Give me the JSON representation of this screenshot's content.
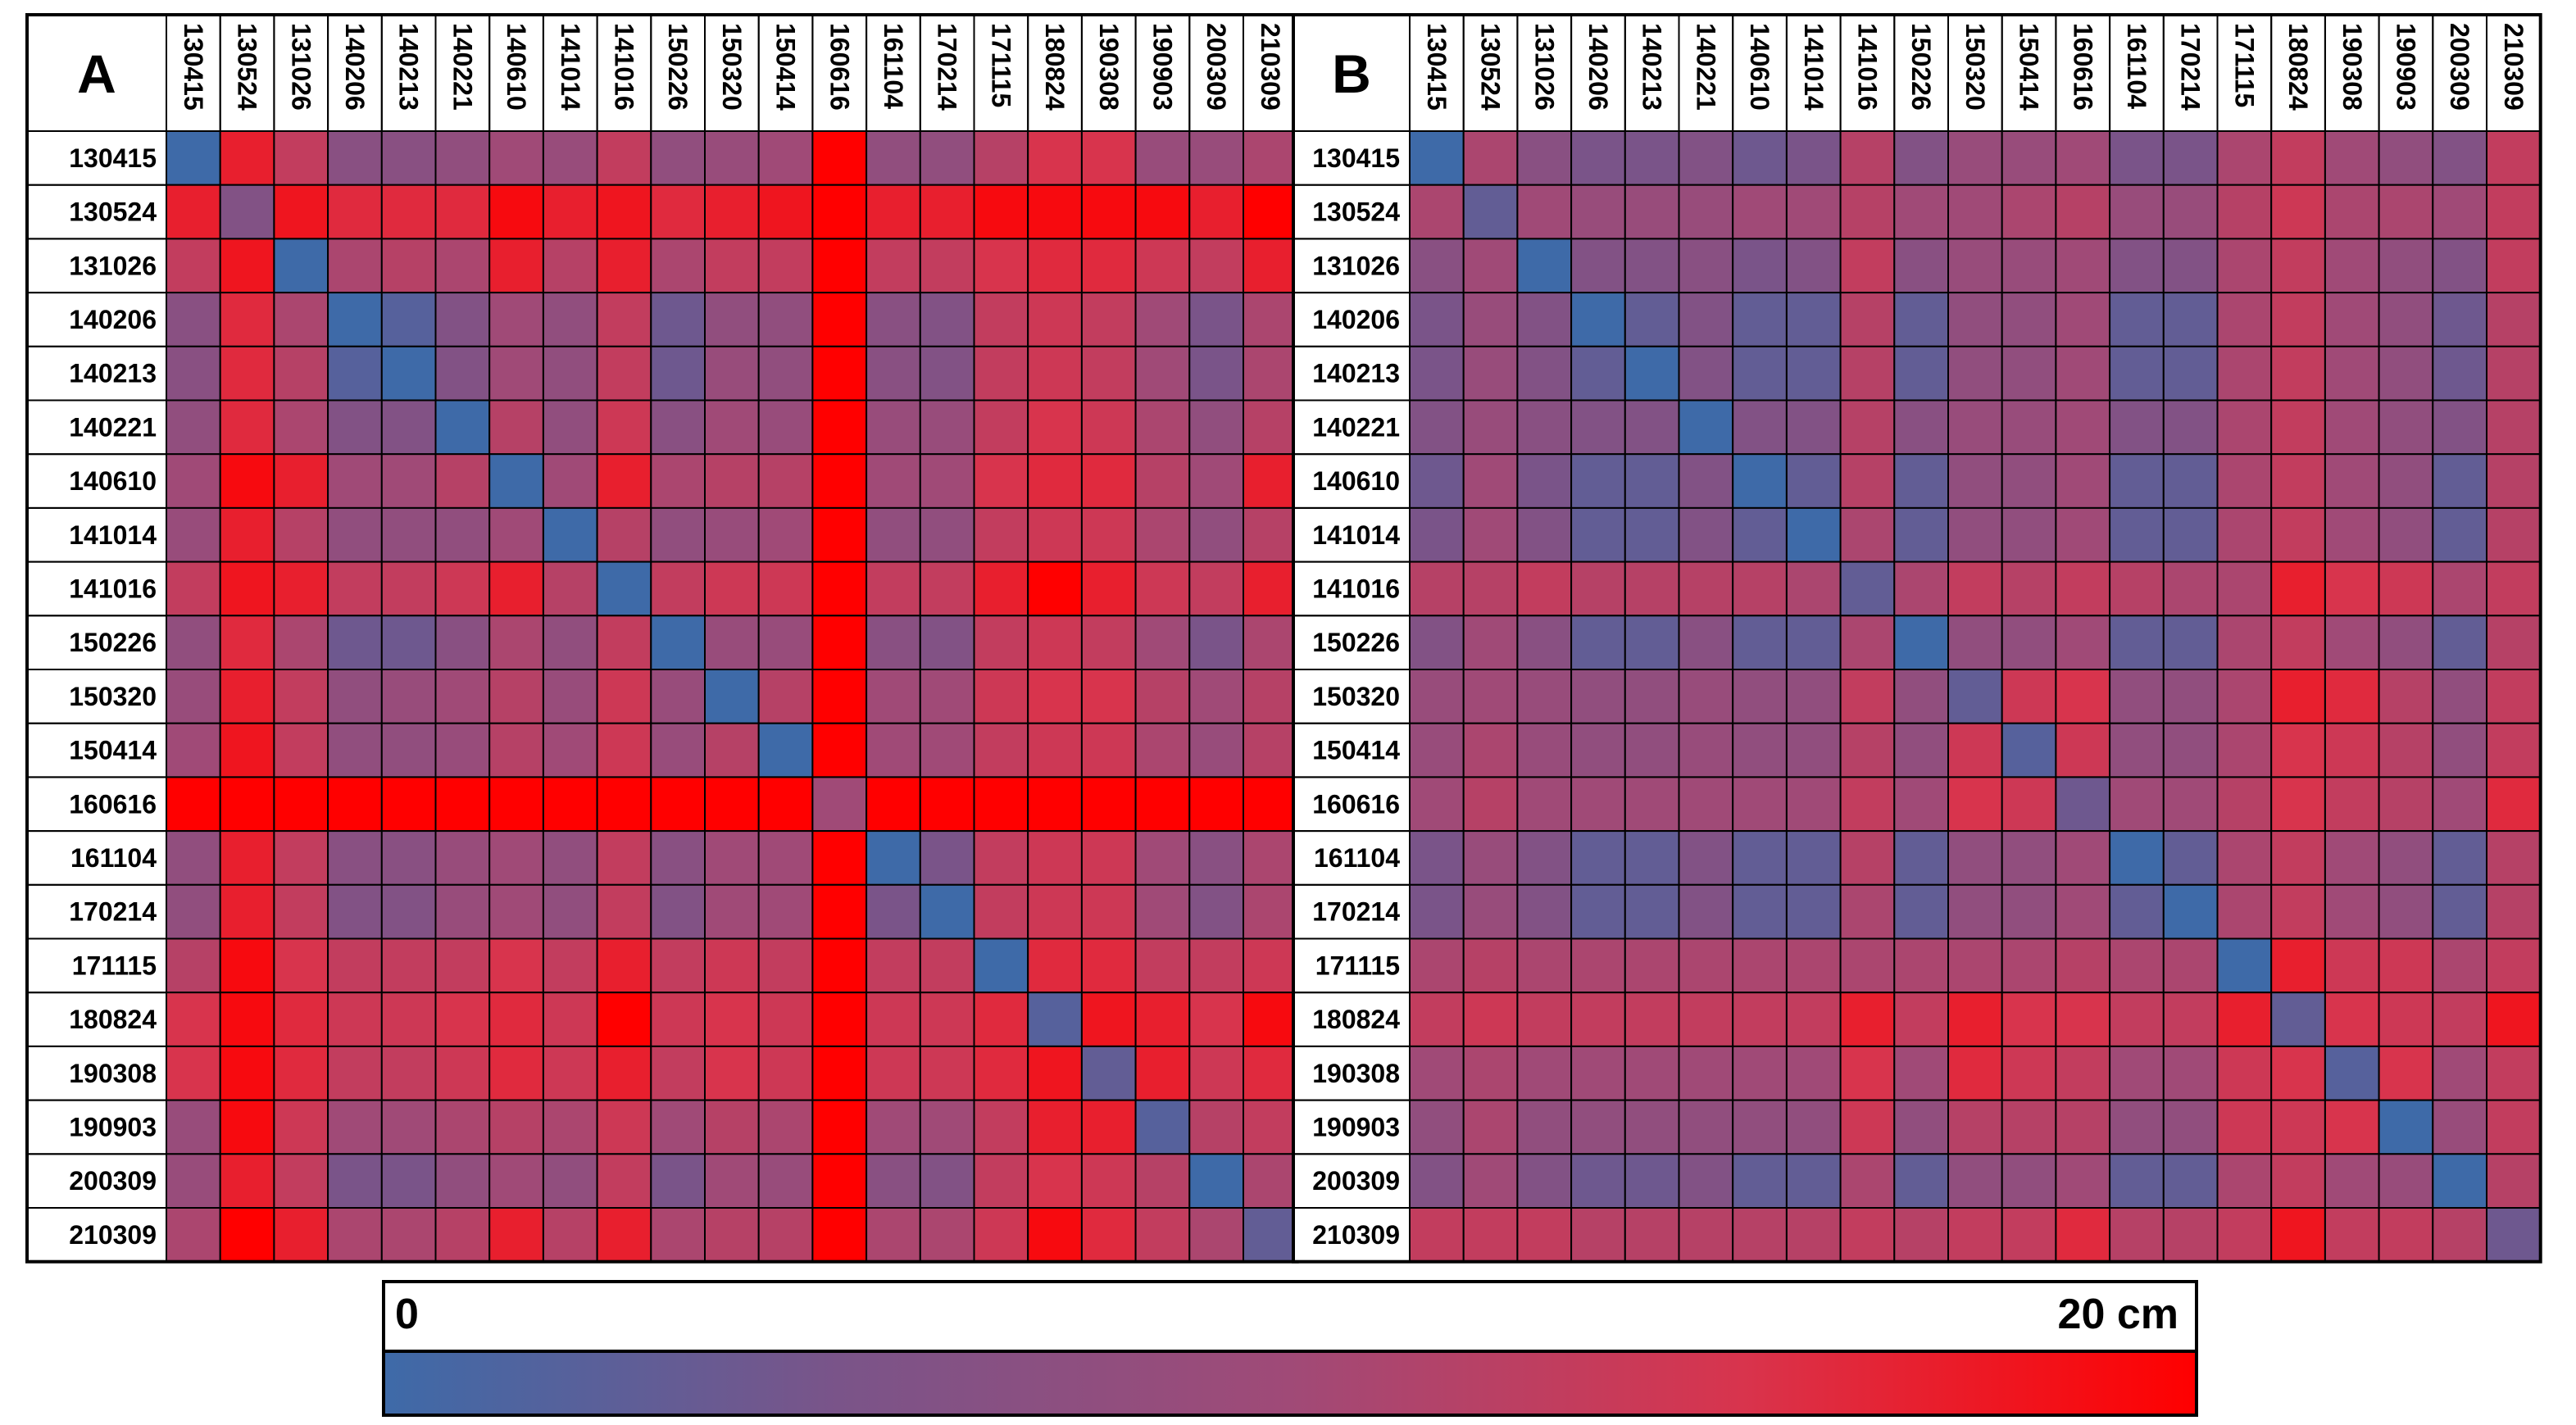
{
  "labels": [
    "130415",
    "130524",
    "131026",
    "140206",
    "140213",
    "140221",
    "140610",
    "141014",
    "141016",
    "150226",
    "150320",
    "150414",
    "160616",
    "161104",
    "170214",
    "171115",
    "180824",
    "190308",
    "190903",
    "200309",
    "210309"
  ],
  "colorscale": {
    "min_label": "0",
    "max_label": "20 cm",
    "min_value": 0,
    "max_value": 20,
    "stops": [
      "#3e6aa8",
      "#7a5489",
      "#a04a77",
      "#d8344d",
      "#ff0000"
    ]
  },
  "chart_data": [
    {
      "type": "heatmap",
      "panel": "A",
      "unit": "cm",
      "vrange": [
        0,
        20
      ],
      "values": [
        [
          0,
          17,
          13,
          7,
          7,
          8,
          10,
          9,
          13,
          8,
          9,
          10,
          20,
          8,
          8,
          12,
          15,
          15,
          9,
          9,
          11
        ],
        [
          17,
          6,
          18,
          16,
          16,
          16,
          19,
          17,
          18,
          16,
          17,
          18,
          20,
          17,
          17,
          19,
          19,
          19,
          19,
          17,
          20
        ],
        [
          13,
          18,
          0,
          11,
          12,
          11,
          17,
          12,
          17,
          11,
          13,
          13,
          20,
          13,
          13,
          15,
          16,
          16,
          14,
          13,
          17
        ],
        [
          7,
          16,
          11,
          0,
          2,
          6,
          10,
          8,
          13,
          4,
          8,
          8,
          20,
          7,
          6,
          13,
          14,
          13,
          10,
          5,
          11
        ],
        [
          7,
          16,
          12,
          2,
          0,
          6,
          10,
          8,
          13,
          4,
          9,
          8,
          20,
          7,
          6,
          13,
          14,
          13,
          10,
          5,
          11
        ],
        [
          8,
          16,
          11,
          6,
          6,
          0,
          12,
          8,
          14,
          7,
          10,
          9,
          20,
          9,
          9,
          13,
          15,
          14,
          11,
          8,
          12
        ],
        [
          10,
          19,
          17,
          10,
          10,
          12,
          0,
          10,
          17,
          11,
          12,
          12,
          20,
          10,
          10,
          15,
          16,
          16,
          12,
          10,
          17
        ],
        [
          9,
          17,
          12,
          8,
          8,
          8,
          10,
          0,
          12,
          8,
          9,
          10,
          20,
          8,
          8,
          13,
          14,
          14,
          11,
          8,
          12
        ],
        [
          13,
          18,
          17,
          13,
          13,
          14,
          17,
          12,
          0,
          13,
          14,
          14,
          20,
          13,
          13,
          17,
          20,
          17,
          14,
          13,
          17
        ],
        [
          8,
          16,
          11,
          4,
          4,
          7,
          11,
          8,
          13,
          0,
          9,
          9,
          20,
          7,
          6,
          13,
          14,
          13,
          10,
          5,
          11
        ],
        [
          9,
          17,
          13,
          8,
          9,
          10,
          12,
          9,
          14,
          9,
          0,
          12,
          20,
          10,
          10,
          14,
          15,
          15,
          12,
          10,
          12
        ],
        [
          10,
          18,
          13,
          8,
          8,
          9,
          12,
          10,
          14,
          9,
          12,
          0,
          20,
          10,
          10,
          13,
          14,
          14,
          11,
          9,
          12
        ],
        [
          20,
          20,
          20,
          20,
          20,
          20,
          20,
          20,
          20,
          20,
          20,
          20,
          10,
          20,
          20,
          20,
          20,
          20,
          20,
          20,
          20
        ],
        [
          8,
          17,
          13,
          7,
          7,
          9,
          10,
          8,
          13,
          7,
          10,
          10,
          20,
          0,
          5,
          13,
          14,
          14,
          10,
          7,
          11
        ],
        [
          8,
          17,
          13,
          6,
          6,
          9,
          10,
          8,
          13,
          6,
          10,
          10,
          20,
          5,
          0,
          13,
          14,
          14,
          10,
          6,
          11
        ],
        [
          12,
          19,
          15,
          13,
          13,
          13,
          15,
          13,
          17,
          13,
          14,
          13,
          20,
          13,
          13,
          0,
          16,
          16,
          13,
          13,
          14
        ],
        [
          15,
          19,
          16,
          14,
          14,
          15,
          16,
          14,
          20,
          14,
          15,
          14,
          20,
          14,
          14,
          16,
          2,
          18,
          17,
          15,
          19
        ],
        [
          15,
          19,
          16,
          13,
          13,
          14,
          16,
          14,
          17,
          13,
          15,
          14,
          20,
          14,
          14,
          16,
          18,
          3,
          17,
          14,
          16
        ],
        [
          9,
          19,
          14,
          10,
          10,
          11,
          12,
          11,
          14,
          10,
          12,
          11,
          20,
          10,
          10,
          13,
          17,
          17,
          2,
          12,
          13
        ],
        [
          9,
          17,
          13,
          5,
          5,
          8,
          10,
          8,
          13,
          5,
          10,
          9,
          20,
          7,
          6,
          13,
          15,
          14,
          12,
          0,
          11
        ],
        [
          11,
          20,
          17,
          11,
          11,
          12,
          17,
          12,
          17,
          11,
          12,
          12,
          20,
          11,
          11,
          14,
          19,
          16,
          13,
          11,
          3
        ]
      ]
    },
    {
      "type": "heatmap",
      "panel": "B",
      "unit": "cm",
      "vrange": [
        0,
        20
      ],
      "values": [
        [
          0,
          11,
          7,
          5,
          5,
          6,
          4,
          5,
          12,
          6,
          9,
          9,
          10,
          5,
          5,
          11,
          13,
          10,
          8,
          6,
          13
        ],
        [
          11,
          3,
          10,
          9,
          9,
          9,
          10,
          10,
          12,
          10,
          10,
          11,
          12,
          9,
          9,
          12,
          14,
          11,
          11,
          10,
          13
        ],
        [
          7,
          10,
          0,
          6,
          6,
          7,
          5,
          6,
          13,
          7,
          9,
          9,
          10,
          6,
          6,
          11,
          13,
          10,
          8,
          6,
          13
        ],
        [
          5,
          9,
          6,
          0,
          3,
          6,
          3,
          3,
          12,
          3,
          8,
          8,
          10,
          3,
          3,
          11,
          13,
          10,
          8,
          4,
          12
        ],
        [
          5,
          9,
          6,
          3,
          0,
          6,
          3,
          3,
          12,
          3,
          8,
          8,
          10,
          3,
          3,
          11,
          13,
          10,
          8,
          4,
          12
        ],
        [
          6,
          9,
          7,
          6,
          6,
          0,
          6,
          6,
          12,
          7,
          9,
          9,
          10,
          6,
          6,
          11,
          13,
          10,
          8,
          6,
          12
        ],
        [
          4,
          10,
          5,
          3,
          3,
          6,
          0,
          3,
          12,
          3,
          8,
          8,
          10,
          3,
          3,
          11,
          13,
          10,
          8,
          3,
          12
        ],
        [
          5,
          10,
          6,
          3,
          3,
          6,
          3,
          0,
          11,
          3,
          8,
          8,
          10,
          3,
          3,
          11,
          13,
          10,
          8,
          3,
          12
        ],
        [
          12,
          12,
          13,
          12,
          12,
          12,
          12,
          11,
          3,
          11,
          13,
          12,
          13,
          12,
          11,
          11,
          17,
          15,
          14,
          11,
          13
        ],
        [
          6,
          10,
          7,
          3,
          3,
          7,
          3,
          3,
          11,
          0,
          8,
          8,
          10,
          3,
          3,
          11,
          13,
          10,
          8,
          3,
          12
        ],
        [
          9,
          10,
          9,
          8,
          8,
          9,
          8,
          8,
          13,
          8,
          3,
          14,
          15,
          8,
          8,
          11,
          17,
          16,
          12,
          8,
          13
        ],
        [
          9,
          11,
          9,
          8,
          8,
          9,
          8,
          8,
          12,
          8,
          14,
          2,
          14,
          8,
          8,
          11,
          15,
          14,
          12,
          8,
          13
        ],
        [
          10,
          12,
          10,
          10,
          10,
          10,
          10,
          10,
          13,
          10,
          15,
          14,
          4,
          10,
          10,
          12,
          15,
          13,
          12,
          10,
          16
        ],
        [
          5,
          9,
          6,
          3,
          3,
          6,
          3,
          3,
          12,
          3,
          8,
          8,
          10,
          0,
          3,
          11,
          13,
          10,
          8,
          3,
          12
        ],
        [
          5,
          9,
          6,
          3,
          3,
          6,
          3,
          3,
          11,
          3,
          8,
          8,
          10,
          3,
          0,
          11,
          13,
          10,
          8,
          3,
          12
        ],
        [
          11,
          12,
          11,
          11,
          11,
          11,
          11,
          11,
          11,
          11,
          11,
          11,
          12,
          11,
          11,
          0,
          17,
          14,
          14,
          11,
          13
        ],
        [
          13,
          14,
          13,
          13,
          13,
          13,
          13,
          13,
          17,
          13,
          17,
          15,
          15,
          13,
          13,
          17,
          3,
          15,
          14,
          13,
          18
        ],
        [
          10,
          11,
          10,
          10,
          10,
          10,
          10,
          10,
          15,
          10,
          16,
          14,
          13,
          10,
          10,
          14,
          15,
          2,
          15,
          10,
          13
        ],
        [
          8,
          11,
          8,
          8,
          8,
          8,
          8,
          8,
          14,
          8,
          12,
          12,
          12,
          8,
          8,
          14,
          14,
          15,
          0,
          9,
          13
        ],
        [
          6,
          10,
          6,
          4,
          4,
          6,
          3,
          3,
          11,
          3,
          8,
          8,
          10,
          3,
          3,
          11,
          13,
          10,
          9,
          0,
          12
        ],
        [
          13,
          13,
          13,
          12,
          12,
          12,
          12,
          12,
          13,
          12,
          13,
          13,
          16,
          12,
          12,
          13,
          18,
          13,
          13,
          12,
          4
        ]
      ]
    }
  ]
}
